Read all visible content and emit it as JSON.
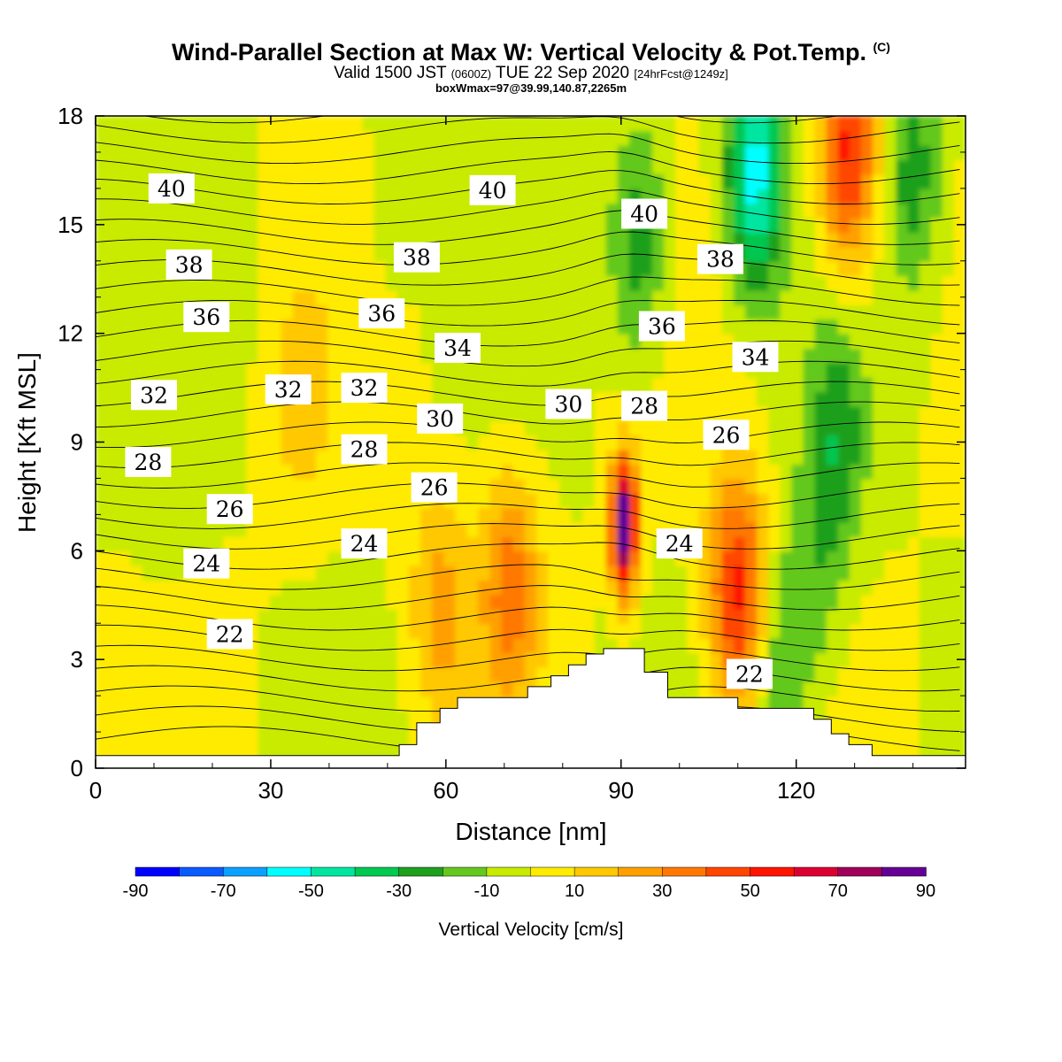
{
  "header": {
    "title": "Wind-Parallel Section at Max W: Vertical Velocity & Pot.Temp.",
    "copyright": "(C)",
    "valid_prefix": "Valid 1500 JST",
    "valid_utc": "(0600Z)",
    "valid_date": "TUE 22 Sep 2020",
    "forecast": "[24hrFcst@1249z]",
    "box_info": "boxWmax=97@39.99,140.87,2265m"
  },
  "colorbar": {
    "title": "Vertical Velocity [cm/s]",
    "labels": [
      "-90",
      "-70",
      "-50",
      "-30",
      "-10",
      "10",
      "30",
      "50",
      "70",
      "90"
    ],
    "levels": [
      -90,
      -80,
      -70,
      -60,
      -50,
      -40,
      -30,
      -20,
      -10,
      0,
      10,
      20,
      30,
      40,
      50,
      60,
      70,
      80,
      90
    ],
    "colors": [
      "#0000ff",
      "#0a5aff",
      "#0aa0ff",
      "#00ffff",
      "#00e6a0",
      "#00c850",
      "#1ea01e",
      "#64c81e",
      "#c8eb00",
      "#ffeb00",
      "#ffc800",
      "#ffa000",
      "#ff7800",
      "#ff4600",
      "#ff1400",
      "#dc0032",
      "#a0005a",
      "#640096"
    ]
  },
  "chart_data": {
    "type": "heatmap",
    "title": "Wind-Parallel Section at Max W: Vertical Velocity & Pot.Temp.",
    "xlabel": "Distance [nm]",
    "ylabel": "Height [Kft MSL]",
    "xlim": [
      0,
      149
    ],
    "ylim": [
      0,
      18
    ],
    "x_ticks": [
      "0",
      "30",
      "60",
      "90",
      "120"
    ],
    "y_ticks": [
      "0",
      "3",
      "6",
      "9",
      "12",
      "15",
      "18"
    ],
    "field": "Vertical Velocity [cm/s]",
    "max_value": 97,
    "terrain_profile": {
      "x": [
        0,
        52,
        52,
        55,
        55,
        59,
        59,
        62,
        62,
        74,
        74,
        78,
        78,
        81,
        81,
        84,
        84,
        87,
        87,
        94,
        94,
        98,
        98,
        110,
        110,
        123,
        123,
        126,
        126,
        129,
        129,
        133,
        133,
        136,
        136,
        149
      ],
      "y": [
        0.35,
        0.35,
        0.65,
        0.65,
        1.25,
        1.25,
        1.65,
        1.65,
        1.95,
        1.95,
        2.25,
        2.25,
        2.55,
        2.55,
        2.85,
        2.85,
        3.15,
        3.15,
        3.3,
        3.3,
        2.65,
        2.65,
        1.95,
        1.95,
        1.65,
        1.65,
        1.35,
        1.35,
        0.95,
        0.95,
        0.65,
        0.65,
        0.35,
        0.35,
        0.35,
        0.35
      ]
    },
    "vv_features": [
      {
        "x": 90.5,
        "y": 6.7,
        "value": 97
      },
      {
        "x": 110,
        "y": 4.8,
        "value": 55
      },
      {
        "x": 129,
        "y": 17.0,
        "value": 55
      },
      {
        "x": 71,
        "y": 5.0,
        "value": 35
      },
      {
        "x": 59,
        "y": 4.5,
        "value": 25
      },
      {
        "x": 35,
        "y": 10.2,
        "value": 15
      },
      {
        "x": 113,
        "y": 16.5,
        "value": -55
      },
      {
        "x": 93,
        "y": 14.5,
        "value": -30
      },
      {
        "x": 127,
        "y": 9.0,
        "value": -25
      },
      {
        "x": 140,
        "y": 16.5,
        "value": -25
      },
      {
        "x": 123,
        "y": 5.0,
        "value": -15
      },
      {
        "x": 117,
        "y": 3.0,
        "value": -20
      },
      {
        "x": 12,
        "y": 8.5,
        "value": -5
      },
      {
        "x": 50,
        "y": 15.0,
        "value": -5
      }
    ],
    "theta_contour_labels": [
      {
        "text": "40",
        "x": 13,
        "y": 16.0
      },
      {
        "text": "40",
        "x": 68,
        "y": 15.95
      },
      {
        "text": "40",
        "x": 94,
        "y": 15.3
      },
      {
        "text": "38",
        "x": 16,
        "y": 13.9
      },
      {
        "text": "38",
        "x": 55,
        "y": 14.1
      },
      {
        "text": "38",
        "x": 107,
        "y": 14.05
      },
      {
        "text": "36",
        "x": 19,
        "y": 12.45
      },
      {
        "text": "36",
        "x": 49,
        "y": 12.55
      },
      {
        "text": "36",
        "x": 97,
        "y": 12.2
      },
      {
        "text": "34",
        "x": 62,
        "y": 11.6
      },
      {
        "text": "34",
        "x": 113,
        "y": 11.35
      },
      {
        "text": "32",
        "x": 10,
        "y": 10.3
      },
      {
        "text": "32",
        "x": 33,
        "y": 10.45
      },
      {
        "text": "32",
        "x": 46,
        "y": 10.5
      },
      {
        "text": "30",
        "x": 59,
        "y": 9.65
      },
      {
        "text": "30",
        "x": 81,
        "y": 10.05
      },
      {
        "text": "28",
        "x": 9,
        "y": 8.45
      },
      {
        "text": "28",
        "x": 46,
        "y": 8.8
      },
      {
        "text": "28",
        "x": 94,
        "y": 10.0
      },
      {
        "text": "26",
        "x": 23,
        "y": 7.15
      },
      {
        "text": "26",
        "x": 58,
        "y": 7.75
      },
      {
        "text": "26",
        "x": 108,
        "y": 9.2
      },
      {
        "text": "24",
        "x": 19,
        "y": 5.65
      },
      {
        "text": "24",
        "x": 46,
        "y": 6.2
      },
      {
        "text": "24",
        "x": 100,
        "y": 6.2
      },
      {
        "text": "22",
        "x": 23,
        "y": 3.7
      },
      {
        "text": "22",
        "x": 112,
        "y": 2.6
      }
    ]
  }
}
